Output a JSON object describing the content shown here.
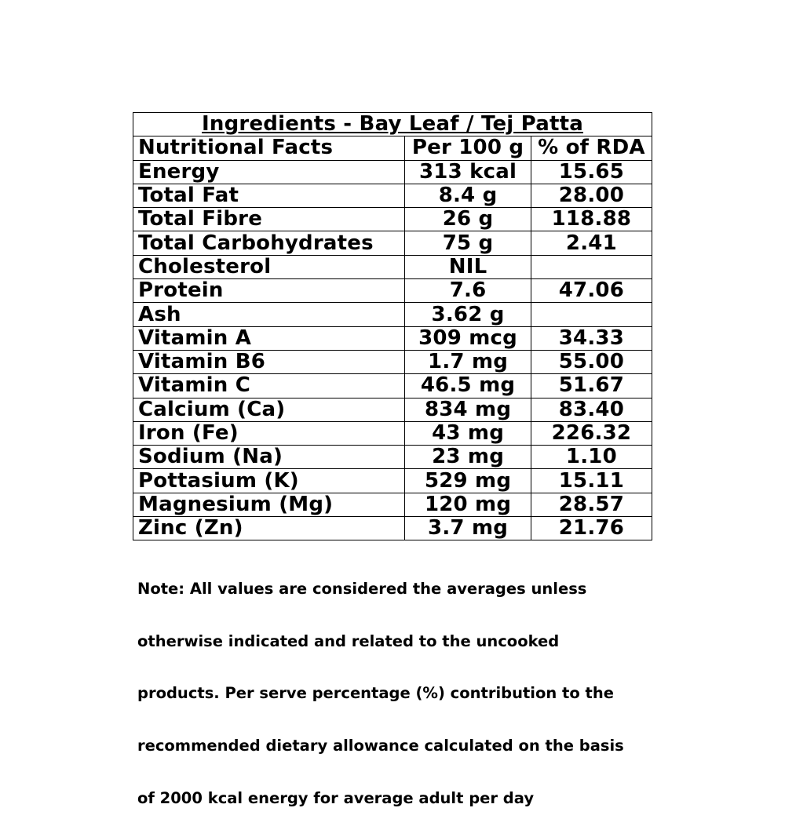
{
  "table": {
    "title": "Ingredients - Bay Leaf / Tej Patta",
    "headers": [
      "Nutritional Facts",
      "Per 100 g",
      "% of RDA"
    ],
    "rows": [
      [
        "Energy",
        "313 kcal",
        "15.65"
      ],
      [
        "Total Fat",
        "8.4 g",
        "28.00"
      ],
      [
        "Total Fibre",
        "26 g",
        "118.88"
      ],
      [
        "Total Carbohydrates",
        "75 g",
        "2.41"
      ],
      [
        "Cholesterol",
        "NIL",
        ""
      ],
      [
        "Protein",
        "7.6",
        "47.06"
      ],
      [
        "Ash",
        "3.62 g",
        ""
      ],
      [
        "Vitamin A",
        "309 mcg",
        "34.33"
      ],
      [
        "Vitamin B6",
        "1.7 mg",
        "55.00"
      ],
      [
        "Vitamin C",
        "46.5 mg",
        "51.67"
      ],
      [
        "Calcium (Ca)",
        "834 mg",
        "83.40"
      ],
      [
        "Iron (Fe)",
        "43 mg",
        "226.32"
      ],
      [
        "Sodium (Na)",
        "23 mg",
        "1.10"
      ],
      [
        "Pottasium (K)",
        "529 mg",
        "15.11"
      ],
      [
        "Magnesium (Mg)",
        "120 mg",
        "28.57"
      ],
      [
        "Zinc (Zn)",
        "3.7 mg",
        "21.76"
      ]
    ]
  },
  "note": {
    "lines": [
      "Note: All values are considered the averages unless",
      "otherwise indicated and related to the uncooked",
      "products. Per serve percentage (%) contribution to the",
      "recommended dietary allowance calculated on the basis",
      "of 2000 kcal energy for average adult per day"
    ]
  }
}
